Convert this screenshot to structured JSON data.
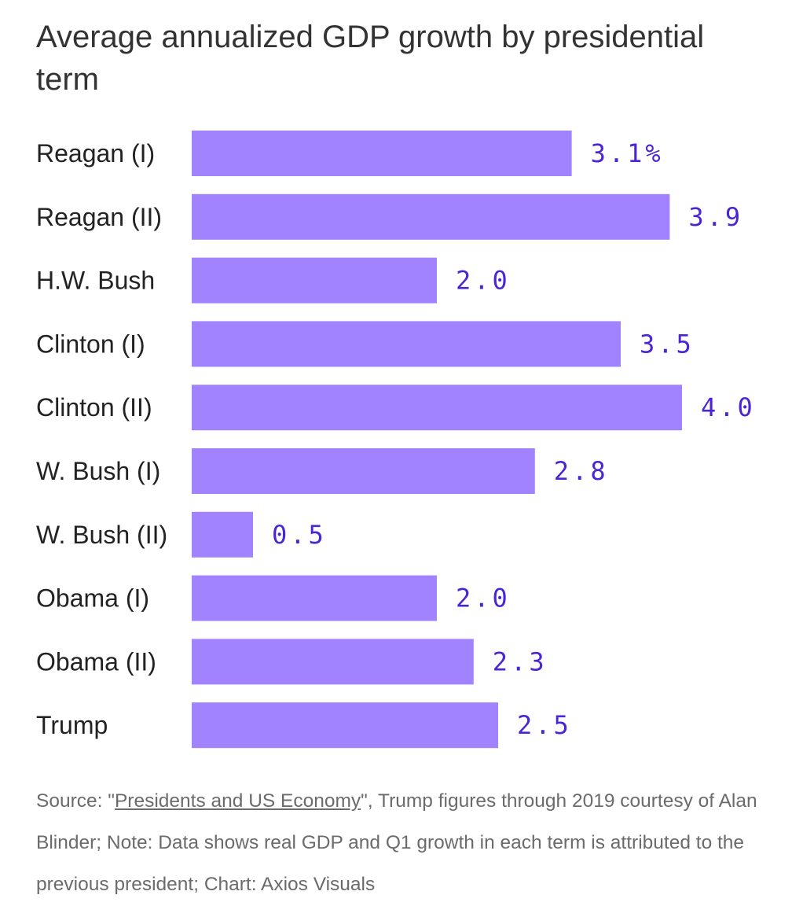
{
  "chart_data": {
    "type": "bar",
    "orientation": "horizontal",
    "title": "Average annualized GDP growth by presidential term",
    "categories": [
      "Reagan (I)",
      "Reagan (II)",
      "H.W. Bush",
      "Clinton (I)",
      "Clinton (II)",
      "W. Bush (I)",
      "W. Bush (II)",
      "Obama (I)",
      "Obama (II)",
      "Trump"
    ],
    "values": [
      3.1,
      3.9,
      2.0,
      3.5,
      4.0,
      2.8,
      0.5,
      2.0,
      2.3,
      2.5
    ],
    "value_labels": [
      "3.1%",
      "3.9",
      "2.0",
      "3.5",
      "4.0",
      "2.8",
      "0.5",
      "2.0",
      "2.3",
      "2.5"
    ],
    "xlim": [
      0,
      4.0
    ],
    "xlabel": "",
    "ylabel": "",
    "grid": false,
    "bar_color": "#a182ff",
    "label_color": "#4a25d6"
  },
  "source": {
    "prefix": "Source: \"",
    "link_text": "Presidents and US Economy",
    "suffix": "\", Trump figures through 2019 courtesy of Alan Blinder; Note: Data shows real GDP and Q1 growth in each term is attributed to the previous president; Chart: Axios Visuals"
  }
}
